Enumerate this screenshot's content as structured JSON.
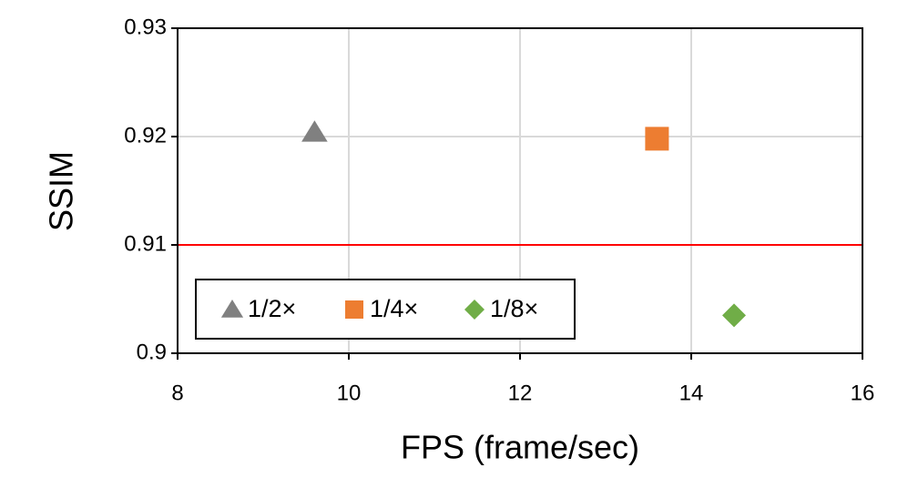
{
  "chart_data": {
    "type": "scatter",
    "x_label": "FPS (frame/sec)",
    "y_label": "SSIM",
    "xlim": [
      8,
      16
    ],
    "xticks": [
      8,
      10,
      12,
      14,
      16
    ],
    "ylim": [
      0.9,
      0.93
    ],
    "yticks": [
      0.9,
      0.91,
      0.92,
      0.93
    ],
    "grid": true,
    "legend_position": "lower left",
    "reference_line": {
      "value": 0.91,
      "color": "#ff0000"
    },
    "series": [
      {
        "name": "1/2×",
        "color": "#808080",
        "marker": "triangle",
        "x": [
          9.6
        ],
        "y": [
          0.9204
        ]
      },
      {
        "name": "1/4×",
        "color": "#ed7d31",
        "marker": "square",
        "x": [
          13.6
        ],
        "y": [
          0.9198
        ]
      },
      {
        "name": "1/8×",
        "color": "#70ad47",
        "marker": "diamond",
        "x": [
          14.5
        ],
        "y": [
          0.9035
        ]
      }
    ]
  }
}
